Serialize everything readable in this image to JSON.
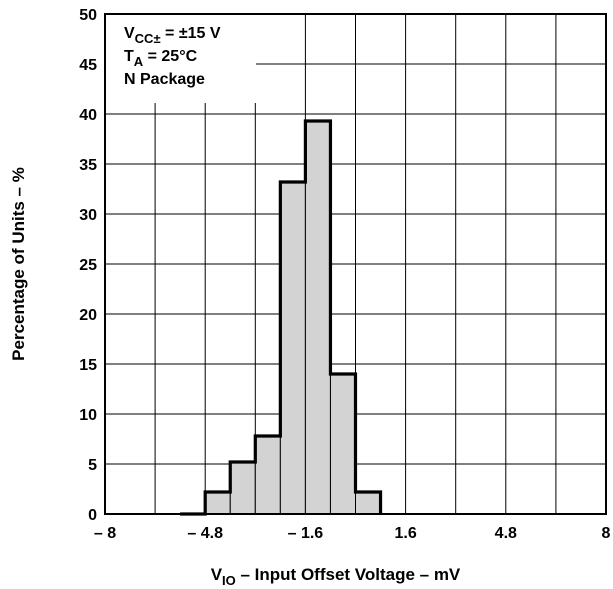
{
  "chart_data": {
    "type": "histogram",
    "xlabel": {
      "main": "V",
      "sub": "IO",
      "rest": " – Input Offset Voltage – mV"
    },
    "ylabel": "Percentage of Units – %",
    "xlim": [
      -8,
      8
    ],
    "ylim": [
      0,
      50
    ],
    "x_ticks": [
      {
        "value": -8,
        "label": "– 8"
      },
      {
        "value": -4.8,
        "label": "– 4.8"
      },
      {
        "value": -1.6,
        "label": "– 1.6"
      },
      {
        "value": 1.6,
        "label": "1.6"
      },
      {
        "value": 4.8,
        "label": "4.8"
      },
      {
        "value": 8,
        "label": "8"
      }
    ],
    "y_ticks": [
      0,
      5,
      10,
      15,
      20,
      25,
      30,
      35,
      40,
      45,
      50
    ],
    "x_grid_step": 1.6,
    "bin_width": 0.8,
    "bins": [
      {
        "x0": -5.6,
        "x1": -4.8,
        "value": 0
      },
      {
        "x0": -4.8,
        "x1": -4.0,
        "value": 2.2
      },
      {
        "x0": -4.0,
        "x1": -3.2,
        "value": 5.2
      },
      {
        "x0": -3.2,
        "x1": -2.4,
        "value": 7.8
      },
      {
        "x0": -2.4,
        "x1": -1.6,
        "value": 33.2
      },
      {
        "x0": -1.6,
        "x1": -0.8,
        "value": 39.3
      },
      {
        "x0": -0.8,
        "x1": 0.0,
        "value": 14.0
      },
      {
        "x0": 0.0,
        "x1": 0.8,
        "value": 2.2
      }
    ],
    "fill_color": "#d3d3d3",
    "grid": true,
    "annotations": [
      {
        "main": "V",
        "sub": "CC±",
        "rest": " = ±15 V"
      },
      {
        "main": "T",
        "sub": "A",
        "rest": " = 25°C"
      },
      {
        "main": "N Package",
        "sub": "",
        "rest": ""
      }
    ]
  }
}
